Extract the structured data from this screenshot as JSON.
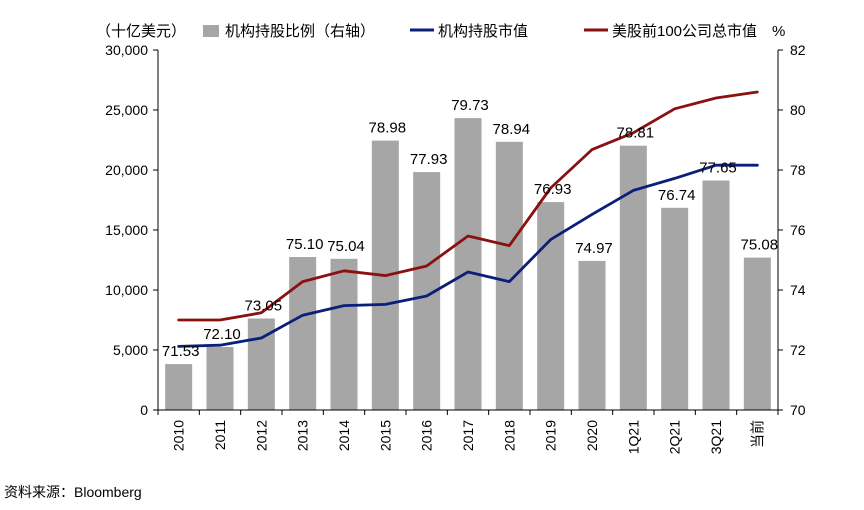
{
  "source_note": "资料来源：Bloomberg",
  "chart_data": {
    "type": "bar",
    "categories": [
      "2010",
      "2011",
      "2012",
      "2013",
      "2014",
      "2015",
      "2016",
      "2017",
      "2018",
      "2019",
      "2020",
      "1Q21",
      "2Q21",
      "3Q21",
      "当前"
    ],
    "y_left": {
      "unit_label": "（十亿美元）",
      "lim": [
        0,
        30000
      ],
      "ticks": [
        "0",
        "5,000",
        "10,000",
        "15,000",
        "20,000",
        "25,000",
        "30,000"
      ],
      "tick_values": [
        0,
        5000,
        10000,
        15000,
        20000,
        25000,
        30000
      ]
    },
    "y_right": {
      "unit_label": "%",
      "lim": [
        70,
        82
      ],
      "ticks": [
        "70",
        "72",
        "74",
        "76",
        "78",
        "80",
        "82"
      ],
      "tick_values": [
        70,
        72,
        74,
        76,
        78,
        80,
        82
      ]
    },
    "grid": false,
    "legend_position": "top",
    "series": [
      {
        "name": "机构持股比例（右轴）",
        "kind": "bar",
        "axis": "right",
        "color": "#a6a6a6",
        "values": [
          71.53,
          72.1,
          73.05,
          75.1,
          75.04,
          78.98,
          77.93,
          79.73,
          78.94,
          76.93,
          74.97,
          78.81,
          76.74,
          77.65,
          75.08
        ],
        "labels": [
          "71.53",
          "72.10",
          "73.05",
          "75.10",
          "75.04",
          "78.98",
          "77.93",
          "79.73",
          "78.94",
          "76.93",
          "74.97",
          "78.81",
          "76.74",
          "77.65",
          "75.08"
        ]
      },
      {
        "name": "机构持股市值",
        "kind": "line",
        "axis": "left",
        "color": "#0b1e7a",
        "values": [
          5300,
          5400,
          6000,
          7900,
          8700,
          8800,
          9500,
          11500,
          10700,
          14200,
          16300,
          18300,
          19300,
          20400,
          20400
        ]
      },
      {
        "name": "美股前100公司总市值",
        "kind": "line",
        "axis": "left",
        "color": "#8b1010",
        "values": [
          7500,
          7500,
          8100,
          10700,
          11600,
          11200,
          12000,
          14500,
          13700,
          18500,
          21700,
          23100,
          25100,
          26000,
          26500
        ]
      }
    ]
  }
}
